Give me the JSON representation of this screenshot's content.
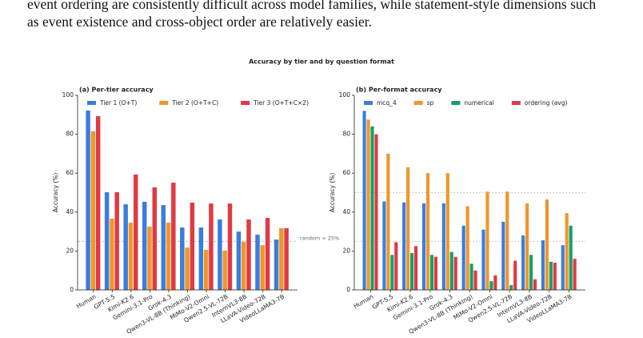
{
  "paragraph": [
    "event ordering are consistently difficult across model families, while statement-style dimensions such",
    "as event existence and cross-object order are relatively easier."
  ],
  "figure_title": "Accuracy by tier and by question format",
  "chart_data": [
    {
      "type": "bar",
      "title": "(a) Per-tier accuracy",
      "y_label": "Accuracy (%)",
      "categories": [
        "Human",
        "GPT-5.5",
        "Kimi-K2.6",
        "Gemini-3.1-Pro",
        "Grok-4.3",
        "Qwen3-VL-8B (Thinking)",
        "MiMo-V2-Omni",
        "Qwen2.5-VL-72B",
        "InternVL3-8B",
        "LLaVA-Video-72B",
        "VideoLLaMA3-7B"
      ],
      "series": [
        {
          "name": "Tier 1 (O+T)",
          "color": "#3b7ddd",
          "values": [
            92.2,
            50.2,
            44,
            45.3,
            43.6,
            32.1,
            32.1,
            36.2,
            30,
            28.4,
            25.9
          ]
        },
        {
          "name": "Tier 2 (O+T+C)",
          "color": "#f0962b",
          "values": [
            81.5,
            36.6,
            34.6,
            32.5,
            34.6,
            21.8,
            20.6,
            20.2,
            24.7,
            23,
            31.7
          ]
        },
        {
          "name": "Tier 3 (O+T+C×2)",
          "color": "#e03a44",
          "values": [
            89.3,
            50.2,
            59.3,
            52.7,
            55.1,
            44.9,
            44.4,
            44.4,
            36.2,
            37,
            31.7
          ]
        }
      ],
      "annotations": [
        {
          "text": "random ≈ 25%",
          "y": 25
        }
      ],
      "ylim": [
        0,
        100
      ],
      "yticks": [
        0,
        20,
        40,
        60,
        80,
        100
      ]
    },
    {
      "type": "bar",
      "title": "(b) Per-format accuracy",
      "y_label": "Accuracy (%)",
      "categories": [
        "Human",
        "GPT-5.5",
        "Kimi-K2.6",
        "Gemini-3.1-Pro",
        "Grok-4.3",
        "Qwen3-VL-8B (Thinking)",
        "MiMo-V2-Omni",
        "Qwen2.5-VL-72B",
        "InternVL3-8B",
        "LLaVA-Video-72B",
        "VideoLLaMA3-7B"
      ],
      "series": [
        {
          "name": "mcq_4",
          "color": "#3b7ddd",
          "values": [
            92,
            45.5,
            45,
            44.5,
            44.5,
            33,
            31,
            35,
            28,
            25.5,
            23
          ]
        },
        {
          "name": "sp",
          "color": "#f0962b",
          "values": [
            87.5,
            70,
            63,
            60,
            60,
            43,
            50.5,
            50.5,
            44.5,
            46.5,
            39.5
          ]
        },
        {
          "name": "numerical",
          "color": "#16a06a",
          "values": [
            84,
            18,
            19,
            18,
            19.5,
            13.5,
            4.5,
            2.5,
            18,
            14.5,
            33
          ]
        },
        {
          "name": "ordering (avg)",
          "color": "#e03a44",
          "values": [
            80,
            24.5,
            22.5,
            17,
            17,
            10,
            7.5,
            15,
            5.5,
            14,
            16
          ]
        }
      ],
      "hlines": [
        50,
        25
      ],
      "ylim": [
        0,
        100
      ],
      "yticks": [
        0,
        20,
        40,
        60,
        80,
        100
      ]
    }
  ]
}
